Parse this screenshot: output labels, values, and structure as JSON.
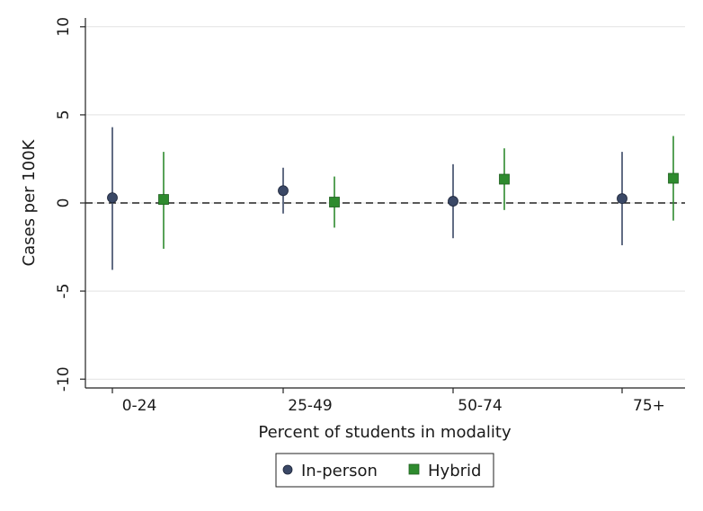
{
  "chart_data": {
    "type": "scatter",
    "title": "",
    "xlabel": "Percent of students in modality",
    "ylabel": "Cases per 100K",
    "categories": [
      "0-24",
      "25-49",
      "50-74",
      "75+"
    ],
    "ylim": [
      -10.5,
      10.5
    ],
    "yticks": [
      10,
      5,
      0,
      -5,
      -10
    ],
    "ytick_labels": [
      "10",
      "5",
      "0",
      "-5",
      "-10"
    ],
    "grid": true,
    "reference_line": 0,
    "legend_position": "bottom",
    "series": [
      {
        "name": "In-person",
        "marker": "circle",
        "color": "#3a4866",
        "values": [
          0.3,
          0.7,
          0.1,
          0.25
        ],
        "ci_low": [
          -3.8,
          -0.6,
          -2.0,
          -2.4
        ],
        "ci_high": [
          4.3,
          2.0,
          2.2,
          2.9
        ]
      },
      {
        "name": "Hybrid",
        "marker": "square",
        "color": "#2e8b2e",
        "values": [
          0.2,
          0.05,
          1.35,
          1.4
        ],
        "ci_low": [
          -2.6,
          -1.4,
          -0.4,
          -1.0
        ],
        "ci_high": [
          2.9,
          1.5,
          3.1,
          3.8
        ]
      }
    ]
  }
}
